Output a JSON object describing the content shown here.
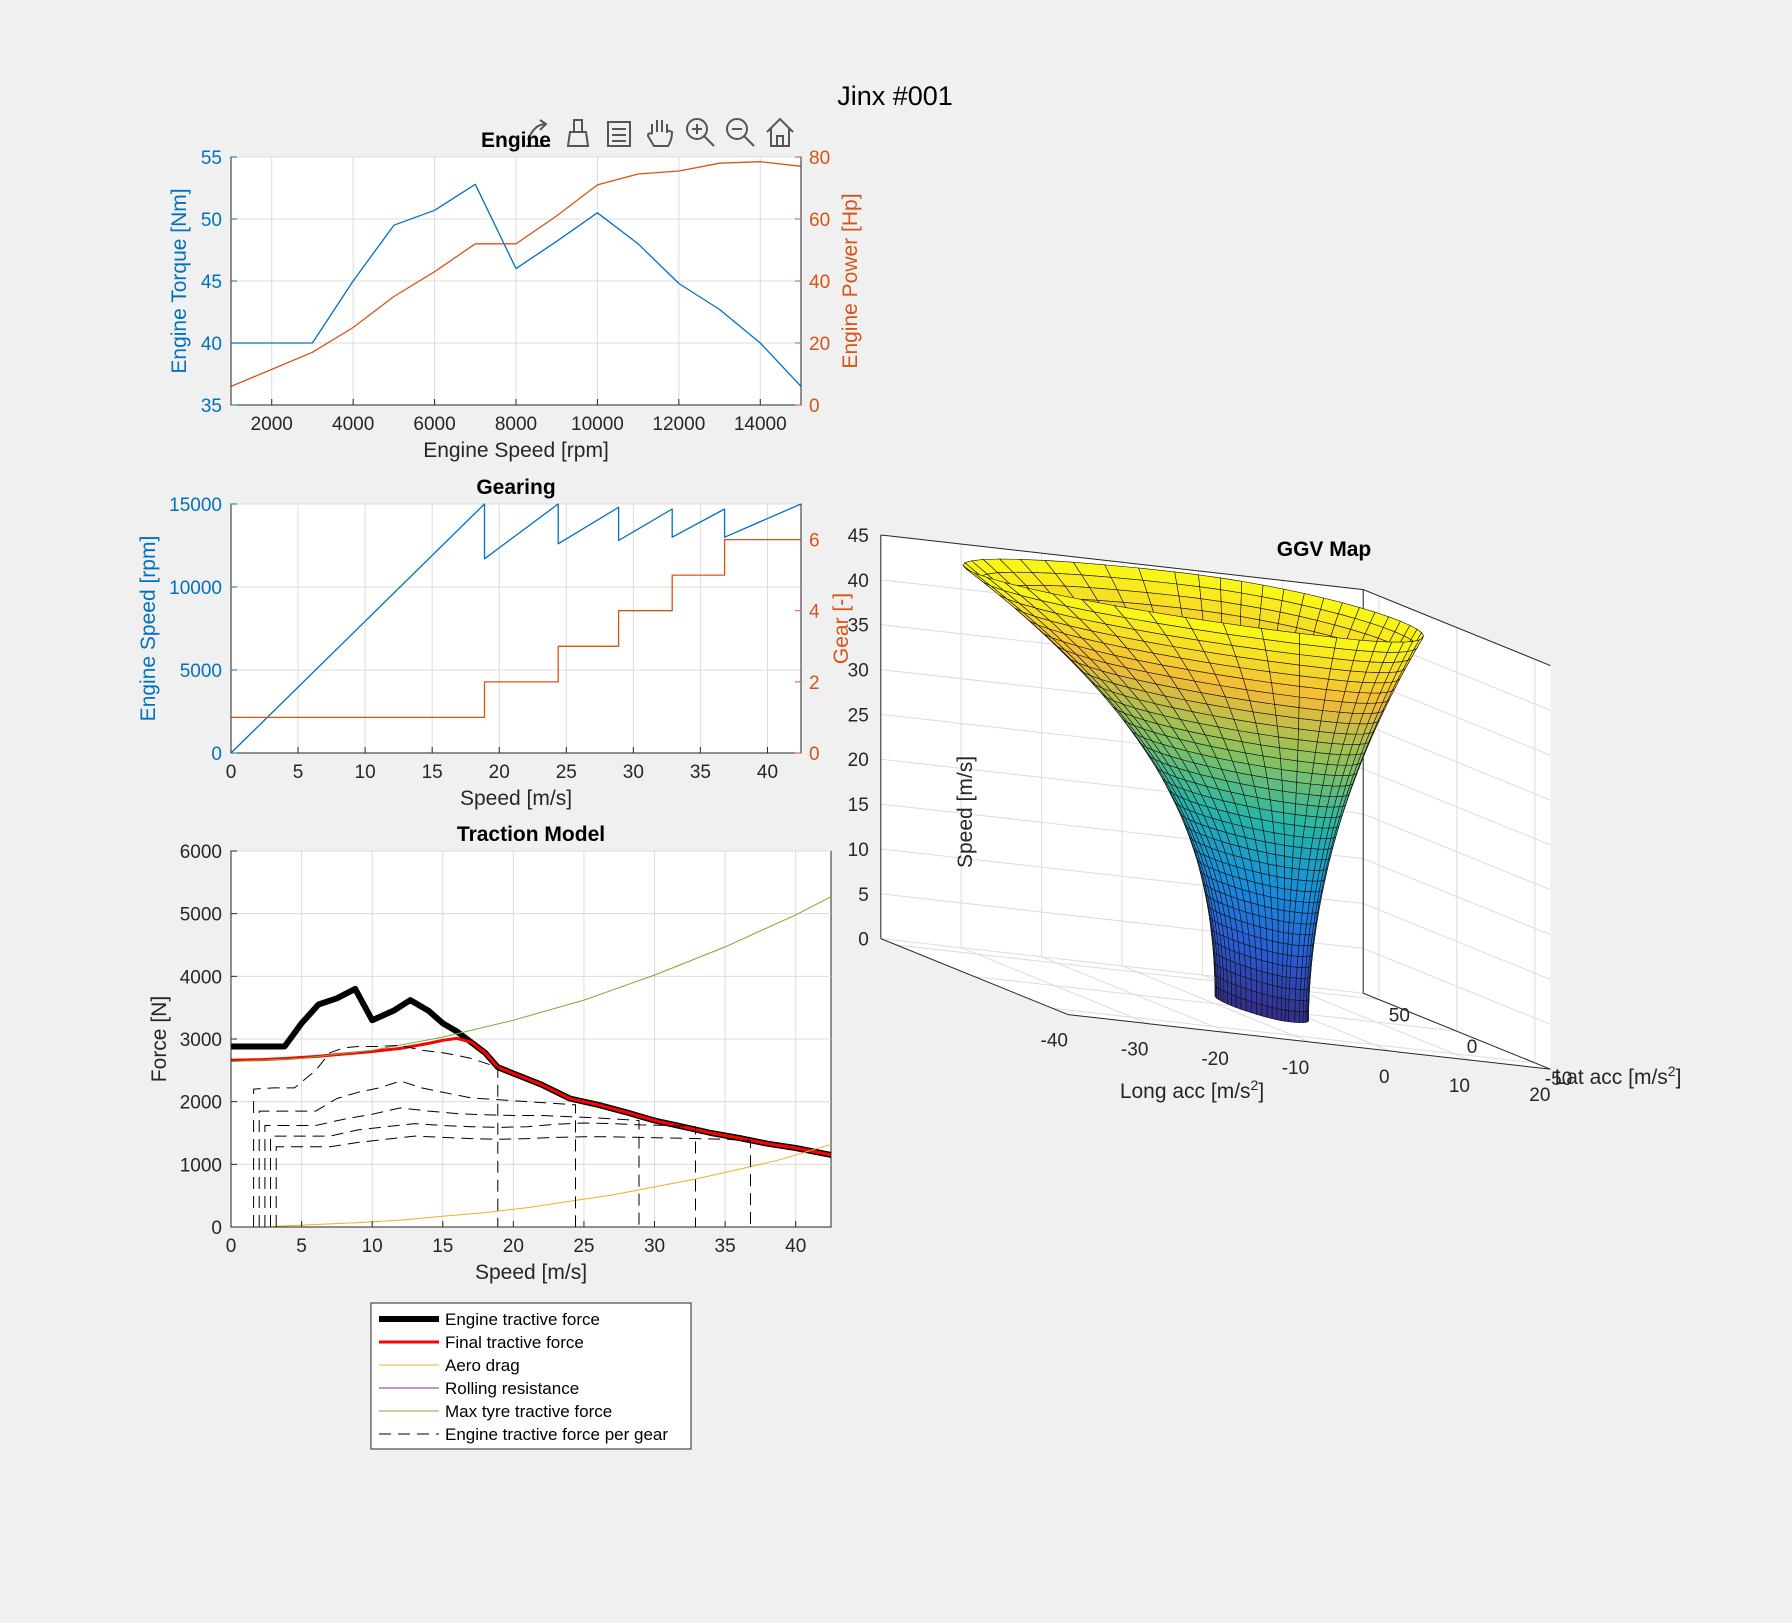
{
  "figure": {
    "title": "Jinx #001",
    "toolbar": [
      "export-icon",
      "brush-icon",
      "legend-icon",
      "pan-icon",
      "zoom-in-icon",
      "zoom-out-icon",
      "home-icon"
    ]
  },
  "colors": {
    "blue": "#0072bd",
    "orange": "#d95319",
    "yellow": "#edb120",
    "purple": "#7e2f8e",
    "green": "#77ac30",
    "red": "#ff0000",
    "black": "#000000"
  },
  "chart_data": [
    {
      "id": "engine",
      "type": "line",
      "title": "Engine",
      "xlabel": "Engine Speed [rpm]",
      "ylabel_left": "Engine Torque [Nm]",
      "ylabel_right": "Engine Power [Hp]",
      "xlim": [
        1000,
        15000
      ],
      "ylim_left": [
        35,
        55
      ],
      "ylim_right": [
        0,
        80
      ],
      "xticks": [
        2000,
        4000,
        6000,
        8000,
        10000,
        12000,
        14000
      ],
      "yticks_left": [
        35,
        40,
        45,
        50,
        55
      ],
      "yticks_right": [
        0,
        20,
        40,
        60,
        80
      ],
      "grid": true,
      "series": [
        {
          "axis": "left",
          "color": "#0072bd",
          "x": [
            1000,
            2000,
            3000,
            4000,
            5000,
            6000,
            7000,
            8000,
            9000,
            10000,
            11000,
            12000,
            13000,
            14000,
            15000
          ],
          "values": [
            40,
            40,
            40,
            45,
            49.5,
            50.7,
            52.8,
            46,
            48.2,
            50.5,
            48,
            44.8,
            42.7,
            40,
            36.5
          ]
        },
        {
          "axis": "right",
          "color": "#d95319",
          "x": [
            1000,
            2000,
            3000,
            4000,
            5000,
            6000,
            7000,
            8000,
            9000,
            10000,
            11000,
            12000,
            13000,
            14000,
            15000
          ],
          "values": [
            6,
            11.5,
            17,
            25,
            35,
            43,
            52,
            52,
            61,
            71,
            74.5,
            75.5,
            78,
            78.5,
            77
          ]
        }
      ]
    },
    {
      "id": "gearing",
      "type": "line",
      "title": "Gearing",
      "xlabel": "Speed [m/s]",
      "ylabel_left": "Engine Speed [rpm]",
      "ylabel_right": "Gear [-]",
      "xlim": [
        0,
        42.5
      ],
      "ylim_left": [
        0,
        15000
      ],
      "ylim_right": [
        0,
        7
      ],
      "xticks": [
        0,
        5,
        10,
        15,
        20,
        25,
        30,
        35,
        40
      ],
      "yticks_left": [
        0,
        5000,
        10000,
        15000
      ],
      "yticks_right": [
        0,
        2,
        4,
        6
      ],
      "grid": true,
      "series": [
        {
          "axis": "left",
          "color": "#0072bd",
          "x": [
            0,
            18.9,
            18.9,
            24.4,
            24.4,
            28.9,
            28.9,
            32.9,
            32.9,
            36.8,
            36.8,
            42.5
          ],
          "values": [
            0,
            15000,
            11700,
            15000,
            12600,
            14800,
            12800,
            14700,
            13000,
            14700,
            13000,
            15000
          ]
        },
        {
          "axis": "right",
          "color": "#d95319",
          "x": [
            0,
            18.9,
            18.9,
            24.4,
            24.4,
            28.9,
            28.9,
            32.9,
            32.9,
            36.8,
            36.8,
            42.5
          ],
          "values": [
            1,
            1,
            2,
            2,
            3,
            3,
            4,
            4,
            5,
            5,
            6,
            6
          ]
        }
      ]
    },
    {
      "id": "traction",
      "type": "line",
      "title": "Traction Model",
      "xlabel": "Speed [m/s]",
      "ylabel": "Force [N]",
      "xlim": [
        0,
        42.5
      ],
      "ylim": [
        0,
        6000
      ],
      "xticks": [
        0,
        5,
        10,
        15,
        20,
        25,
        30,
        35,
        40
      ],
      "yticks": [
        0,
        1000,
        2000,
        3000,
        4000,
        5000,
        6000
      ],
      "grid": true,
      "legend_position": "below",
      "series": [
        {
          "name": "Engine tractive force",
          "color": "#000000",
          "width": 6,
          "dash": "",
          "x": [
            0,
            1,
            2,
            3,
            3.8,
            5,
            6.2,
            7.5,
            8.8,
            10,
            11.5,
            12.7,
            14,
            15,
            16,
            17,
            18,
            18.9,
            20,
            22,
            24,
            26,
            28,
            30,
            32,
            34,
            36,
            38,
            40,
            42.5
          ],
          "values": [
            2880,
            2880,
            2880,
            2880,
            2880,
            3250,
            3550,
            3650,
            3800,
            3300,
            3450,
            3620,
            3450,
            3250,
            3120,
            2950,
            2780,
            2550,
            2450,
            2270,
            2050,
            1950,
            1830,
            1700,
            1600,
            1500,
            1420,
            1330,
            1260,
            1150
          ]
        },
        {
          "name": "Final tractive force",
          "color": "#ff0000",
          "width": 3,
          "dash": "",
          "x": [
            0,
            2,
            4,
            6,
            8,
            10,
            12,
            14,
            15,
            16,
            17,
            18,
            18.9,
            20,
            22,
            24,
            26,
            28,
            30,
            32,
            34,
            36,
            38,
            40,
            42.5
          ],
          "values": [
            2660,
            2670,
            2690,
            2720,
            2760,
            2800,
            2850,
            2930,
            2980,
            3010,
            2950,
            2780,
            2550,
            2450,
            2270,
            2050,
            1950,
            1830,
            1700,
            1600,
            1500,
            1420,
            1330,
            1260,
            1150
          ]
        },
        {
          "name": "Aero drag",
          "color": "#edb120",
          "width": 1,
          "dash": "",
          "x": [
            3,
            6,
            9,
            12,
            15,
            18,
            21,
            24,
            27,
            30,
            33,
            36,
            39,
            42.5
          ],
          "values": [
            10,
            40,
            70,
            110,
            170,
            230,
            310,
            410,
            510,
            640,
            770,
            920,
            1080,
            1320
          ]
        },
        {
          "name": "Rolling resistance",
          "color": "#7e2f8e",
          "width": 1,
          "dash": "",
          "x": [
            3,
            42.5
          ],
          "values": [
            0,
            0
          ]
        },
        {
          "name": "Max tyre tractive force",
          "color": "#77ac30",
          "width": 1,
          "dash": "",
          "x": [
            0,
            5,
            10,
            15,
            20,
            25,
            30,
            35,
            40,
            42.5
          ],
          "values": [
            2640,
            2690,
            2820,
            3030,
            3300,
            3620,
            4020,
            4470,
            4980,
            5270
          ]
        },
        {
          "name": "Engine tractive force per gear",
          "color": "#000000",
          "width": 1,
          "dash": "12 7",
          "x": [
            1.6,
            1.6,
            3,
            4.5,
            6,
            7,
            8,
            9,
            10.5,
            12,
            13.5,
            15,
            16,
            17,
            18.9,
            18.9
          ],
          "values": [
            0,
            2200,
            2220,
            2220,
            2500,
            2780,
            2860,
            2880,
            2880,
            2900,
            2820,
            2780,
            2740,
            2690,
            2550,
            0
          ]
        },
        {
          "name": "",
          "color": "#000000",
          "width": 1,
          "dash": "12 7",
          "x": [
            2,
            2,
            4,
            6,
            7.5,
            9,
            10.5,
            12,
            13.5,
            15,
            17,
            19,
            21,
            23,
            24.4,
            24.4
          ],
          "values": [
            0,
            1850,
            1850,
            1850,
            2050,
            2150,
            2220,
            2330,
            2220,
            2150,
            2060,
            2030,
            2000,
            1970,
            1950,
            0
          ]
        },
        {
          "name": "",
          "color": "#000000",
          "width": 1,
          "dash": "12 7",
          "x": [
            2.4,
            2.4,
            4,
            6,
            8,
            10,
            12,
            14,
            16,
            18,
            20,
            22,
            24,
            26,
            28.9,
            28.9
          ],
          "values": [
            0,
            1620,
            1620,
            1620,
            1720,
            1800,
            1900,
            1850,
            1810,
            1790,
            1780,
            1780,
            1760,
            1740,
            1700,
            0
          ]
        },
        {
          "name": "",
          "color": "#000000",
          "width": 1,
          "dash": "12 7",
          "x": [
            2.8,
            2.8,
            5,
            7,
            9,
            11,
            13,
            15,
            17,
            19,
            21,
            23,
            25,
            27,
            29,
            31,
            32.9,
            32.9
          ],
          "values": [
            0,
            1450,
            1450,
            1450,
            1550,
            1600,
            1650,
            1620,
            1600,
            1590,
            1600,
            1640,
            1660,
            1650,
            1630,
            1620,
            1600,
            0
          ]
        },
        {
          "name": "",
          "color": "#000000",
          "width": 1,
          "dash": "12 7",
          "x": [
            3.2,
            3.2,
            5,
            7,
            9,
            11,
            13,
            15,
            17,
            19,
            21,
            23,
            25,
            27,
            29,
            31,
            33,
            35,
            36.8,
            36.8
          ],
          "values": [
            0,
            1280,
            1280,
            1280,
            1350,
            1400,
            1450,
            1430,
            1410,
            1400,
            1410,
            1430,
            1440,
            1440,
            1430,
            1420,
            1410,
            1400,
            1380,
            0
          ]
        }
      ]
    },
    {
      "id": "ggv",
      "type": "surface3d",
      "title": "GGV Map",
      "xlabel": "Long acc [m/s",
      "ylabel": "Lat acc [m/s",
      "zlabel": "Speed [m/s]",
      "xticks": [
        -40,
        -30,
        -20,
        -10,
        0,
        10,
        20
      ],
      "yticks": [
        50,
        0,
        -50
      ],
      "zticks": [
        0,
        5,
        10,
        15,
        20,
        25,
        30,
        35,
        40,
        45
      ],
      "xlim": [
        -40,
        20
      ],
      "ylim": [
        -60,
        60
      ],
      "zlim": [
        0,
        45
      ],
      "colormap": "parula",
      "grid": true
    }
  ]
}
